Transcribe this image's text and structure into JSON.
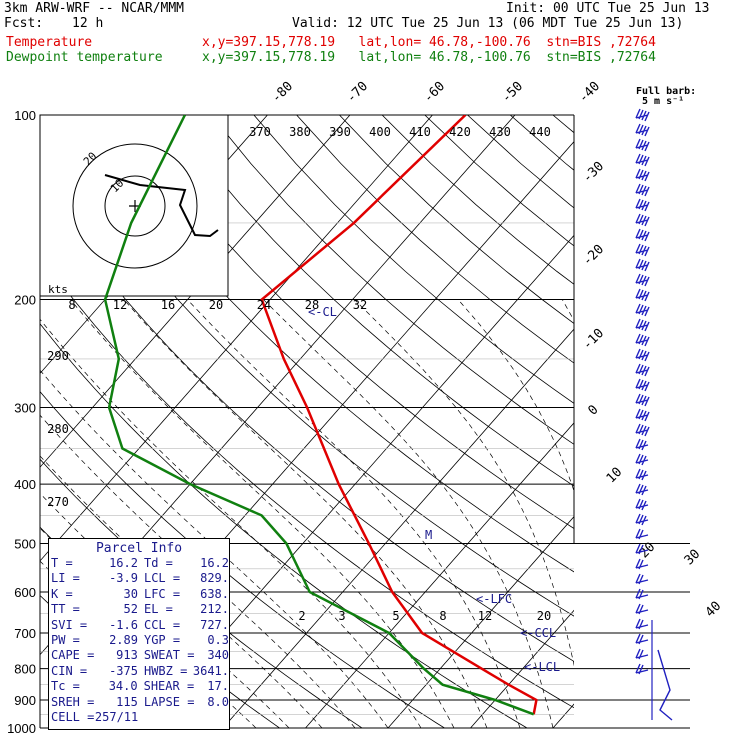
{
  "header": {
    "model": "3km ARW-WRF -- NCAR/MMM",
    "init": "Init: 00 UTC Tue 25 Jun 13",
    "fcst_label": "Fcst:",
    "fcst_value": "12 h",
    "valid": "Valid: 12 UTC Tue 25 Jun 13 (06 MDT Tue 25 Jun 13)",
    "temp_label": "Temperature",
    "dew_label": "Dewpoint temperature",
    "location_temp": "x,y=397.15,778.19   lat,lon= 46.78,-100.76  stn=BIS ,72764",
    "location_dew": "x,y=397.15,778.19   lat,lon= 46.78,-100.76  stn=BIS ,72764",
    "full_barb": "Full barb:",
    "barb_unit": "5 m s⁻¹"
  },
  "colors": {
    "temperature": "#e00000",
    "dewpoint": "#108010",
    "parcel": "#1a1a8c",
    "grid": "#000000"
  },
  "chart_data": {
    "type": "line",
    "title": "",
    "xlabel": "",
    "ylabel": "",
    "pressure_levels": [
      100,
      200,
      300,
      400,
      500,
      600,
      700,
      800,
      900,
      1000
    ],
    "isotherm_labels": [
      -80,
      -70,
      -60,
      -50,
      -40,
      -30,
      -20,
      -10,
      0,
      10,
      20,
      30,
      40
    ],
    "theta_labels": [
      370,
      380,
      390,
      400,
      410,
      420,
      430,
      440
    ],
    "thetae_labels": [
      290,
      280,
      270
    ],
    "mixing_ratio_labels": [
      2,
      3,
      5,
      8,
      12,
      20
    ],
    "hodo_labels": {
      "unit": "kts",
      "speeds": [
        8,
        12,
        16,
        20,
        24,
        28,
        32
      ],
      "rings": [
        "20",
        "10"
      ]
    },
    "annotations": {
      "ccl_upper": "<-CL",
      "lfc": "<-LFC",
      "ccl": "<-CCL",
      "lcl": "<-LCL",
      "el": "M"
    },
    "series": [
      {
        "name": "Temperature",
        "points": [
          [
            100,
            -56
          ],
          [
            150,
            -58
          ],
          [
            200,
            -61
          ],
          [
            250,
            -52
          ],
          [
            300,
            -44
          ],
          [
            400,
            -32
          ],
          [
            500,
            -22
          ],
          [
            600,
            -14
          ],
          [
            700,
            -6
          ],
          [
            800,
            5
          ],
          [
            850,
            10
          ],
          [
            900,
            15
          ],
          [
            950,
            16.2
          ]
        ]
      },
      {
        "name": "Dewpoint temperature",
        "points": [
          [
            100,
            -90
          ],
          [
            150,
            -85
          ],
          [
            200,
            -80
          ],
          [
            250,
            -72
          ],
          [
            300,
            -68
          ],
          [
            350,
            -62
          ],
          [
            400,
            -50
          ],
          [
            450,
            -38
          ],
          [
            500,
            -32
          ],
          [
            600,
            -24
          ],
          [
            700,
            -10
          ],
          [
            800,
            -2
          ],
          [
            850,
            2
          ],
          [
            900,
            10
          ],
          [
            950,
            16.2
          ]
        ]
      }
    ]
  },
  "parcel": {
    "title": "Parcel Info",
    "rows": [
      [
        "T",
        "=",
        "16.2",
        "Td",
        "=",
        "16.2"
      ],
      [
        "LI",
        "=",
        "-3.9",
        "LCL",
        "=",
        "829."
      ],
      [
        "K",
        "=",
        "30",
        "LFC",
        "=",
        "638."
      ],
      [
        "TT",
        "=",
        "52",
        "EL",
        "=",
        "212."
      ],
      [
        "SVI",
        "=",
        "-1.6",
        "CCL",
        "=",
        "727."
      ],
      [
        "PW",
        "=",
        "2.89",
        "YGP",
        "=",
        "0.3"
      ],
      [
        "CAPE",
        "=",
        "913",
        "SWEAT",
        "=",
        "340"
      ],
      [
        "CIN",
        "=",
        "-375",
        "HWBZ",
        "=",
        "3641."
      ],
      [
        "Tc",
        "=",
        "34.0",
        "SHEAR",
        "=",
        "17."
      ],
      [
        "SREH",
        "=",
        "115",
        "LAPSE",
        "=",
        "8.0"
      ],
      [
        "CELL",
        "=",
        "257/11",
        "",
        "",
        ""
      ]
    ]
  }
}
